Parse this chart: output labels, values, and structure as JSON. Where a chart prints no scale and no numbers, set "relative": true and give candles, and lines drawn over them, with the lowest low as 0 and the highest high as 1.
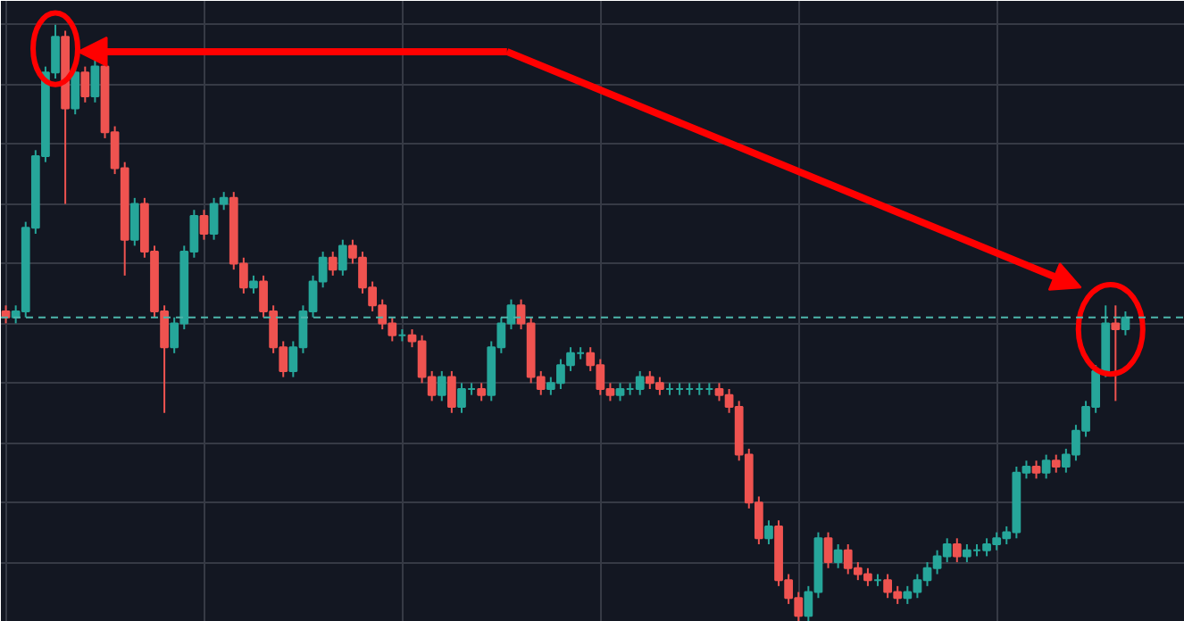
{
  "chart_data": {
    "type": "candlestick",
    "relative": true,
    "grid": true,
    "tick_labels": false,
    "categories": [
      null,
      null,
      null,
      null,
      null,
      null,
      null,
      null,
      null,
      null,
      null,
      null,
      null,
      null,
      null,
      null,
      null,
      null,
      null,
      null,
      null,
      null,
      null,
      null,
      null,
      null,
      null,
      null,
      null,
      null,
      null,
      null,
      null,
      null,
      null,
      null,
      null,
      null,
      null,
      null,
      null,
      null,
      null,
      null,
      null,
      null,
      null,
      null,
      null,
      null,
      null,
      null,
      null,
      null,
      null,
      null,
      null,
      null,
      null,
      null,
      null,
      null,
      null,
      null,
      null,
      null,
      null,
      null,
      null,
      null,
      null,
      null,
      null,
      null,
      null,
      null,
      null,
      null,
      null,
      null,
      null,
      null,
      null,
      null,
      null,
      null,
      null,
      null,
      null,
      null,
      null,
      null,
      null,
      null,
      null,
      null,
      null,
      null,
      null,
      null,
      null,
      null,
      null,
      null,
      null,
      null,
      null,
      null,
      null,
      null,
      null,
      null,
      null,
      null
    ],
    "ohlc": [
      [
        0.52,
        0.53,
        0.5,
        0.51
      ],
      [
        0.51,
        0.53,
        0.5,
        0.52
      ],
      [
        0.52,
        0.67,
        0.51,
        0.66
      ],
      [
        0.66,
        0.79,
        0.65,
        0.78
      ],
      [
        0.78,
        0.93,
        0.77,
        0.92
      ],
      [
        0.92,
        1.0,
        0.91,
        0.98
      ],
      [
        0.98,
        0.99,
        0.7,
        0.86
      ],
      [
        0.86,
        0.93,
        0.85,
        0.92
      ],
      [
        0.92,
        0.93,
        0.87,
        0.88
      ],
      [
        0.88,
        0.94,
        0.87,
        0.93
      ],
      [
        0.93,
        0.94,
        0.81,
        0.82
      ],
      [
        0.82,
        0.83,
        0.75,
        0.76
      ],
      [
        0.76,
        0.77,
        0.58,
        0.64
      ],
      [
        0.64,
        0.71,
        0.63,
        0.7
      ],
      [
        0.7,
        0.71,
        0.61,
        0.62
      ],
      [
        0.62,
        0.63,
        0.51,
        0.52
      ],
      [
        0.52,
        0.53,
        0.35,
        0.46
      ],
      [
        0.46,
        0.51,
        0.45,
        0.5
      ],
      [
        0.5,
        0.63,
        0.49,
        0.62
      ],
      [
        0.62,
        0.69,
        0.61,
        0.68
      ],
      [
        0.68,
        0.69,
        0.64,
        0.65
      ],
      [
        0.65,
        0.71,
        0.64,
        0.7
      ],
      [
        0.7,
        0.72,
        0.69,
        0.71
      ],
      [
        0.71,
        0.72,
        0.59,
        0.6
      ],
      [
        0.6,
        0.61,
        0.55,
        0.56
      ],
      [
        0.56,
        0.58,
        0.55,
        0.57
      ],
      [
        0.57,
        0.58,
        0.51,
        0.52
      ],
      [
        0.52,
        0.53,
        0.45,
        0.46
      ],
      [
        0.46,
        0.47,
        0.41,
        0.42
      ],
      [
        0.42,
        0.47,
        0.41,
        0.46
      ],
      [
        0.46,
        0.53,
        0.45,
        0.52
      ],
      [
        0.52,
        0.58,
        0.51,
        0.57
      ],
      [
        0.57,
        0.62,
        0.56,
        0.61
      ],
      [
        0.61,
        0.62,
        0.58,
        0.59
      ],
      [
        0.59,
        0.64,
        0.58,
        0.63
      ],
      [
        0.63,
        0.64,
        0.6,
        0.61
      ],
      [
        0.61,
        0.62,
        0.55,
        0.56
      ],
      [
        0.56,
        0.57,
        0.52,
        0.53
      ],
      [
        0.53,
        0.54,
        0.49,
        0.5
      ],
      [
        0.5,
        0.51,
        0.47,
        0.48
      ],
      [
        0.48,
        0.49,
        0.47,
        0.48
      ],
      [
        0.48,
        0.49,
        0.46,
        0.47
      ],
      [
        0.47,
        0.48,
        0.4,
        0.41
      ],
      [
        0.41,
        0.42,
        0.37,
        0.38
      ],
      [
        0.38,
        0.42,
        0.37,
        0.41
      ],
      [
        0.41,
        0.42,
        0.35,
        0.36
      ],
      [
        0.36,
        0.4,
        0.35,
        0.39
      ],
      [
        0.39,
        0.4,
        0.38,
        0.39
      ],
      [
        0.39,
        0.4,
        0.37,
        0.38
      ],
      [
        0.38,
        0.47,
        0.37,
        0.46
      ],
      [
        0.46,
        0.51,
        0.45,
        0.5
      ],
      [
        0.5,
        0.54,
        0.49,
        0.53
      ],
      [
        0.53,
        0.54,
        0.49,
        0.5
      ],
      [
        0.5,
        0.51,
        0.4,
        0.41
      ],
      [
        0.41,
        0.42,
        0.38,
        0.39
      ],
      [
        0.39,
        0.41,
        0.38,
        0.4
      ],
      [
        0.4,
        0.44,
        0.39,
        0.43
      ],
      [
        0.43,
        0.46,
        0.42,
        0.45
      ],
      [
        0.45,
        0.46,
        0.44,
        0.45
      ],
      [
        0.45,
        0.46,
        0.42,
        0.43
      ],
      [
        0.43,
        0.44,
        0.38,
        0.39
      ],
      [
        0.39,
        0.4,
        0.37,
        0.38
      ],
      [
        0.38,
        0.4,
        0.37,
        0.39
      ],
      [
        0.39,
        0.4,
        0.38,
        0.39
      ],
      [
        0.39,
        0.42,
        0.38,
        0.41
      ],
      [
        0.41,
        0.42,
        0.39,
        0.4
      ],
      [
        0.4,
        0.41,
        0.38,
        0.39
      ],
      [
        0.39,
        0.4,
        0.38,
        0.39
      ],
      [
        0.39,
        0.4,
        0.38,
        0.39
      ],
      [
        0.39,
        0.4,
        0.38,
        0.39
      ],
      [
        0.39,
        0.4,
        0.38,
        0.39
      ],
      [
        0.39,
        0.4,
        0.38,
        0.39
      ],
      [
        0.39,
        0.4,
        0.37,
        0.38
      ],
      [
        0.38,
        0.39,
        0.35,
        0.36
      ],
      [
        0.36,
        0.37,
        0.27,
        0.28
      ],
      [
        0.28,
        0.29,
        0.19,
        0.2
      ],
      [
        0.2,
        0.21,
        0.13,
        0.14
      ],
      [
        0.14,
        0.17,
        0.13,
        0.16
      ],
      [
        0.16,
        0.17,
        0.06,
        0.07
      ],
      [
        0.07,
        0.08,
        0.03,
        0.04
      ],
      [
        0.04,
        0.05,
        0.0,
        0.01
      ],
      [
        0.01,
        0.06,
        0.0,
        0.05
      ],
      [
        0.05,
        0.15,
        0.04,
        0.14
      ],
      [
        0.14,
        0.15,
        0.09,
        0.1
      ],
      [
        0.1,
        0.13,
        0.09,
        0.12
      ],
      [
        0.12,
        0.13,
        0.08,
        0.09
      ],
      [
        0.09,
        0.1,
        0.07,
        0.08
      ],
      [
        0.08,
        0.09,
        0.06,
        0.07
      ],
      [
        0.07,
        0.08,
        0.06,
        0.07
      ],
      [
        0.07,
        0.08,
        0.04,
        0.05
      ],
      [
        0.05,
        0.06,
        0.03,
        0.04
      ],
      [
        0.04,
        0.06,
        0.03,
        0.05
      ],
      [
        0.05,
        0.08,
        0.04,
        0.07
      ],
      [
        0.07,
        0.1,
        0.06,
        0.09
      ],
      [
        0.09,
        0.12,
        0.08,
        0.11
      ],
      [
        0.11,
        0.14,
        0.1,
        0.13
      ],
      [
        0.13,
        0.14,
        0.1,
        0.11
      ],
      [
        0.11,
        0.13,
        0.1,
        0.12
      ],
      [
        0.12,
        0.13,
        0.11,
        0.12
      ],
      [
        0.12,
        0.14,
        0.11,
        0.13
      ],
      [
        0.13,
        0.15,
        0.12,
        0.14
      ],
      [
        0.14,
        0.16,
        0.13,
        0.15
      ],
      [
        0.15,
        0.26,
        0.14,
        0.25
      ],
      [
        0.25,
        0.27,
        0.24,
        0.26
      ],
      [
        0.26,
        0.27,
        0.24,
        0.25
      ],
      [
        0.25,
        0.28,
        0.24,
        0.27
      ],
      [
        0.27,
        0.28,
        0.25,
        0.26
      ],
      [
        0.26,
        0.29,
        0.25,
        0.28
      ],
      [
        0.28,
        0.33,
        0.27,
        0.32
      ],
      [
        0.32,
        0.37,
        0.31,
        0.36
      ],
      [
        0.36,
        0.43,
        0.35,
        0.42
      ],
      [
        0.42,
        0.53,
        0.41,
        0.5
      ],
      [
        0.5,
        0.53,
        0.37,
        0.49
      ],
      [
        0.49,
        0.52,
        0.48,
        0.51
      ]
    ],
    "ref_lines": [
      {
        "axis": "y",
        "value": 0.51,
        "color": "#4db6ac",
        "line_style": "dashed"
      }
    ]
  }
}
